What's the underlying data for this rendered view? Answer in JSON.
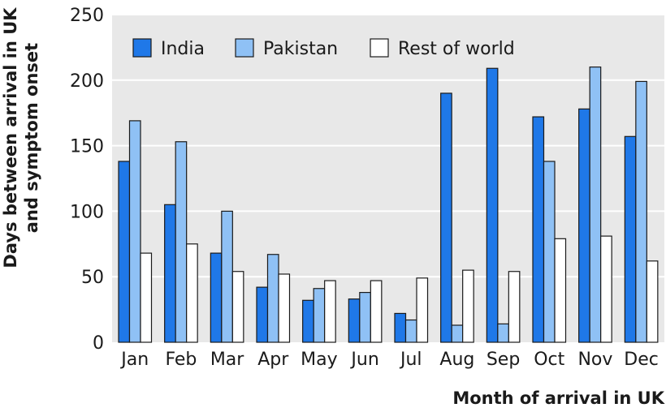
{
  "chart_data": {
    "type": "bar",
    "categories": [
      "Jan",
      "Feb",
      "Mar",
      "Apr",
      "May",
      "Jun",
      "Jul",
      "Aug",
      "Sep",
      "Oct",
      "Nov",
      "Dec"
    ],
    "series": [
      {
        "name": "India",
        "color": "#1f78e8",
        "values": [
          138,
          105,
          68,
          42,
          32,
          33,
          22,
          190,
          209,
          172,
          178,
          157
        ]
      },
      {
        "name": "Pakistan",
        "color": "#8fc1f5",
        "values": [
          169,
          153,
          100,
          67,
          41,
          38,
          17,
          13,
          14,
          138,
          210,
          199
        ]
      },
      {
        "name": "Rest of world",
        "color": "#ffffff",
        "values": [
          68,
          75,
          54,
          52,
          47,
          47,
          49,
          55,
          54,
          79,
          81,
          62
        ]
      }
    ],
    "xlabel": "Month of arrival in UK",
    "ylabel_lines": [
      "Days between arrival in UK",
      "and symptom onset"
    ],
    "ylim": [
      0,
      250
    ],
    "yticks": [
      0,
      50,
      100,
      150,
      200,
      250
    ],
    "grid": true,
    "legend_position": "top-left",
    "background_color": "#e8e8e8"
  }
}
